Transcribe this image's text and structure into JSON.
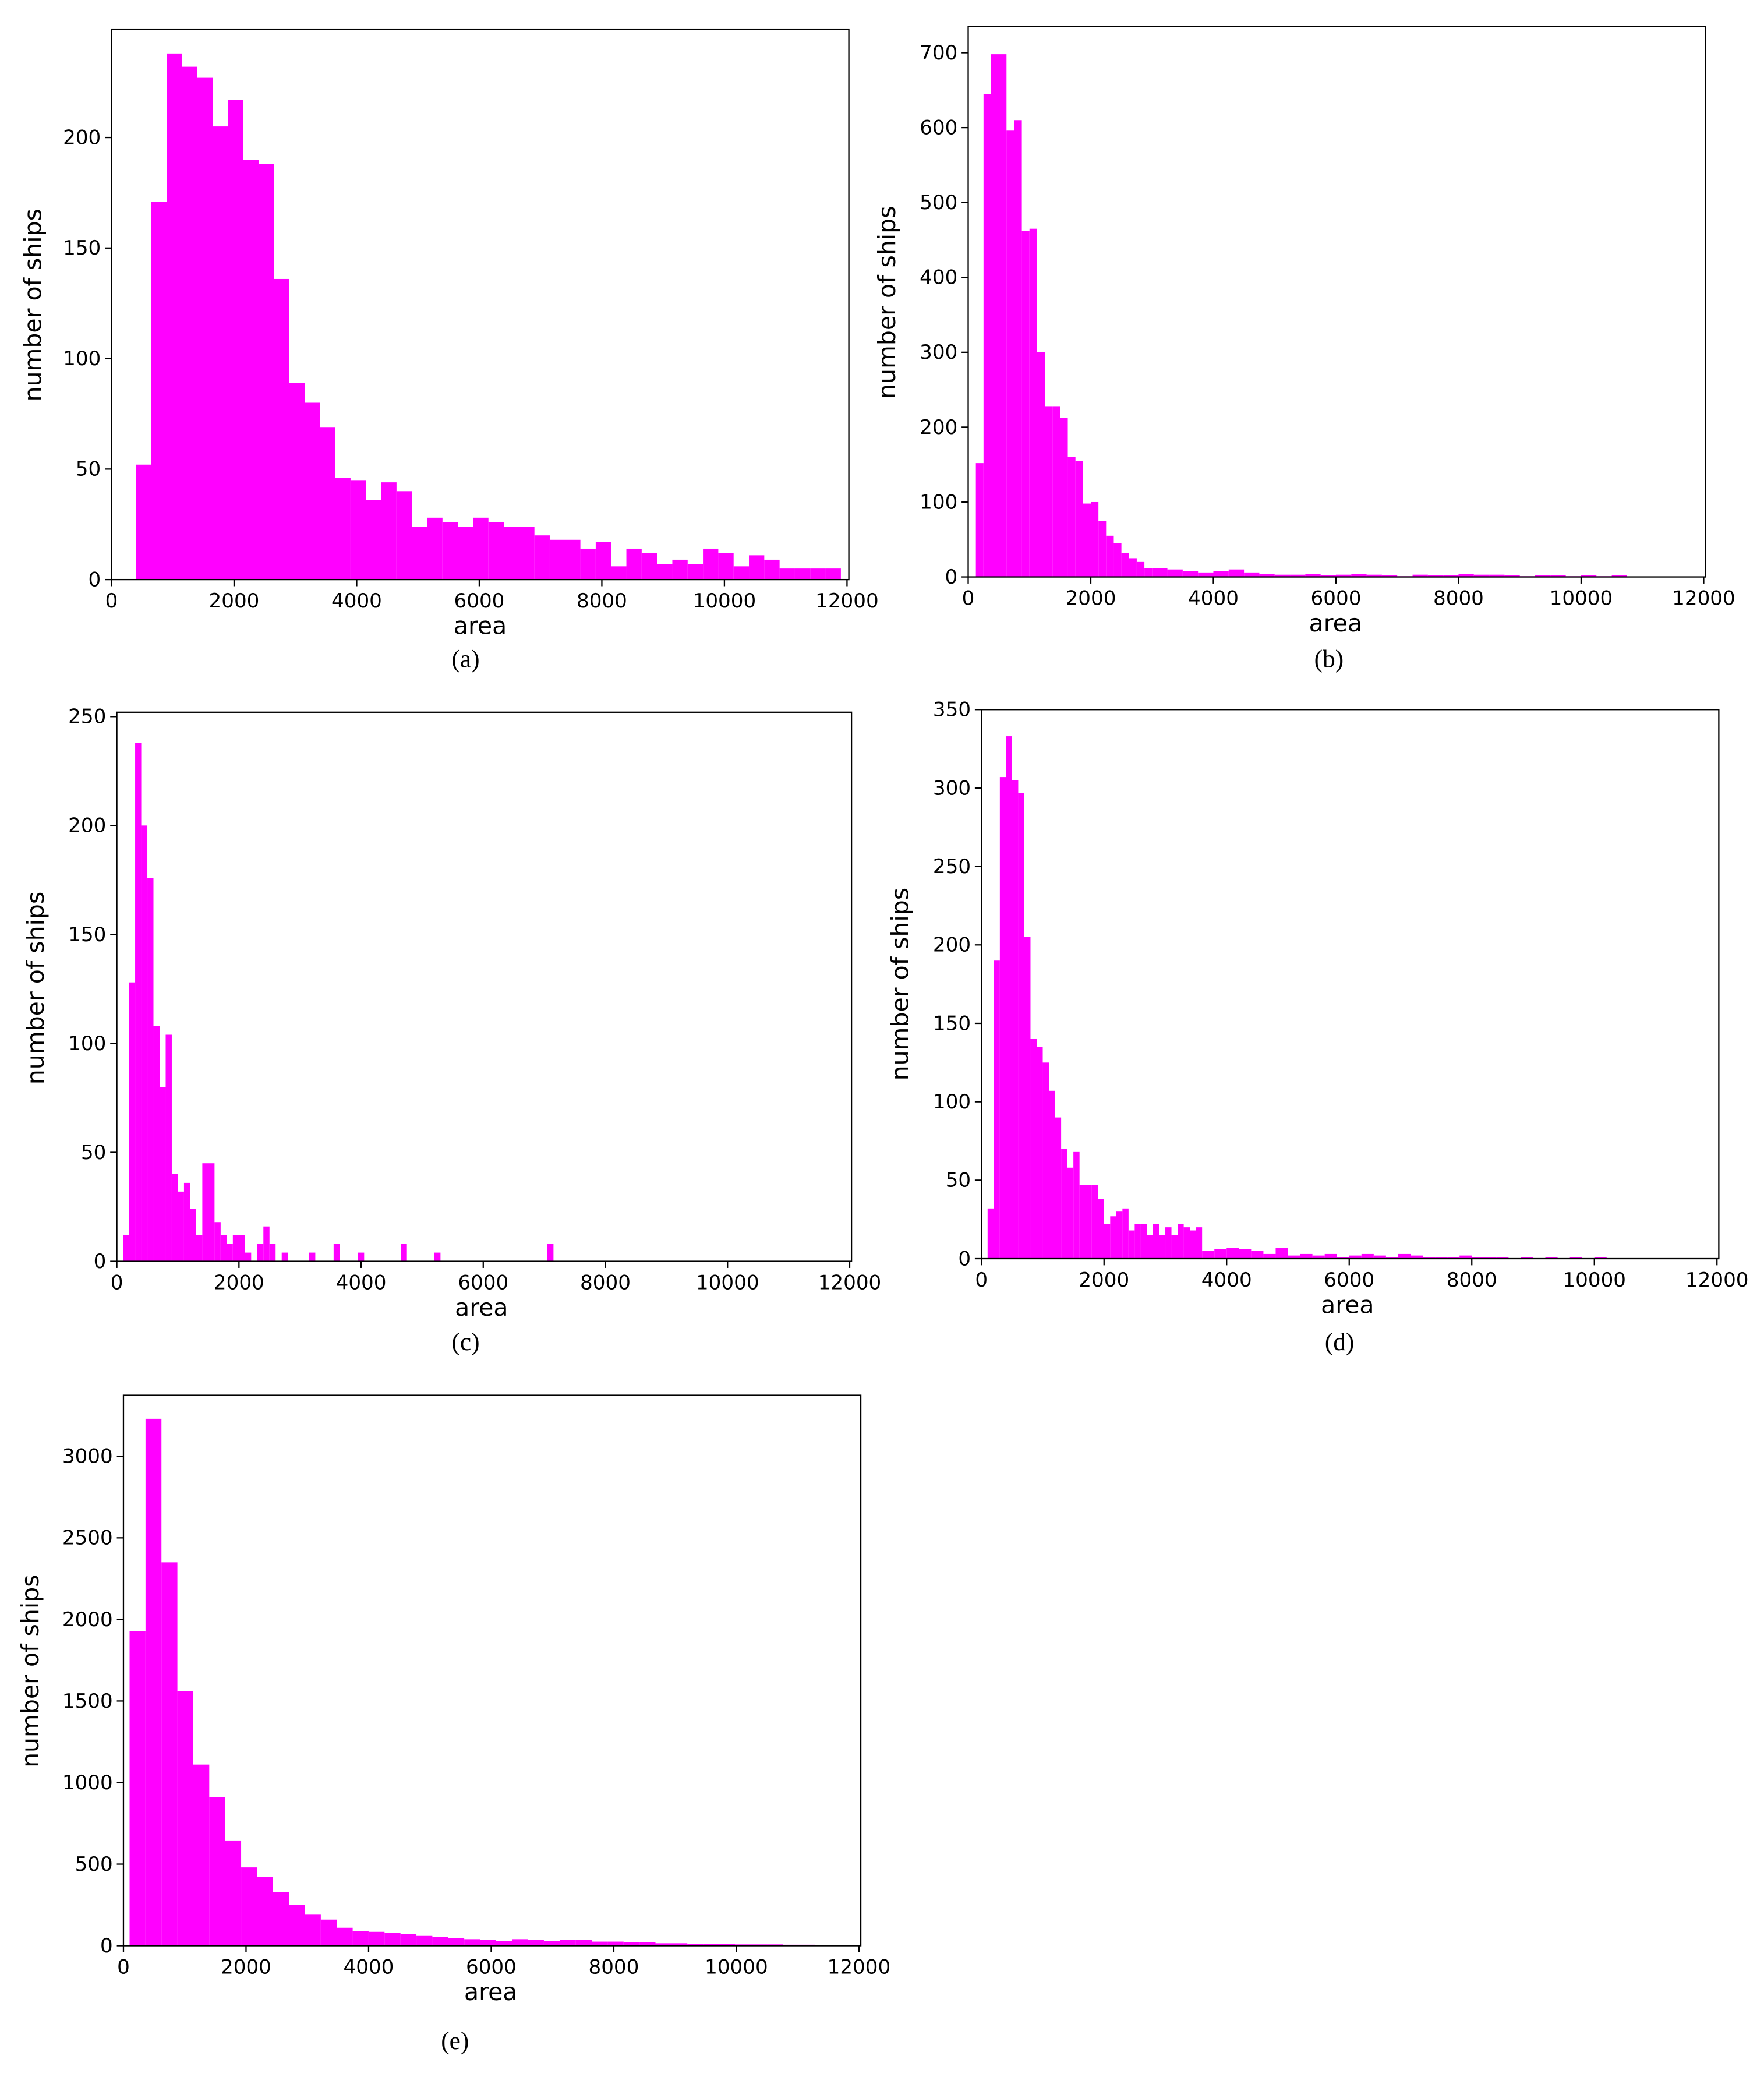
{
  "chart_data": [
    {
      "type": "histogram",
      "caption": "(a)",
      "xlabel": "area",
      "ylabel": "number of ships",
      "color": "#ff00ff",
      "bins": [
        400,
        650,
        900,
        1150,
        1400,
        1650,
        1900,
        2150,
        2400,
        2650,
        2900,
        3150,
        3400,
        3650,
        3900,
        4150,
        4400,
        4650,
        4900,
        5150,
        5400,
        5650,
        5900,
        6150,
        6400,
        6650,
        6900,
        7150,
        7400,
        7650,
        7900,
        8150,
        8400,
        8650,
        8900,
        9150,
        9400,
        9650,
        9900,
        10150,
        10400,
        10650,
        10900,
        11150,
        11400,
        11650,
        11900
      ],
      "values": [
        52,
        171,
        238,
        232,
        227,
        205,
        217,
        190,
        188,
        136,
        89,
        80,
        69,
        46,
        45,
        36,
        44,
        40,
        24,
        28,
        26,
        24,
        28,
        26,
        24,
        24,
        20,
        18,
        18,
        14,
        17,
        6,
        14,
        12,
        7,
        9,
        7,
        14,
        12,
        6,
        11,
        9,
        5,
        5,
        5,
        5
      ],
      "xlim": [
        0,
        12030
      ],
      "ylim": [
        0,
        249
      ],
      "xticks": [
        0,
        2000,
        4000,
        6000,
        8000,
        10000,
        12000
      ],
      "yticks": [
        0,
        50,
        100,
        150,
        200
      ]
    },
    {
      "type": "histogram",
      "caption": "(b)",
      "xlabel": "area",
      "ylabel": "number of ships",
      "color": "#ff00ff",
      "bins": [
        125,
        250,
        375,
        500,
        625,
        750,
        875,
        1000,
        1125,
        1250,
        1375,
        1500,
        1625,
        1750,
        1875,
        2000,
        2125,
        2250,
        2375,
        2500,
        2625,
        2750,
        2875,
        3000,
        3250,
        3500,
        3750,
        4000,
        4250,
        4500,
        4750,
        5000,
        5250,
        5500,
        5750,
        6000,
        6250,
        6500,
        6750,
        7000,
        7250,
        7500,
        7750,
        8000,
        8250,
        8500,
        8750,
        9000,
        9250,
        9500,
        9750,
        10000,
        10250,
        10500,
        10750
      ],
      "values": [
        152,
        645,
        698,
        698,
        596,
        610,
        462,
        465,
        300,
        228,
        228,
        212,
        160,
        155,
        98,
        100,
        75,
        55,
        45,
        32,
        25,
        20,
        12,
        12,
        10,
        8,
        6,
        8,
        10,
        6,
        4,
        3,
        3,
        4,
        2,
        3,
        4,
        3,
        2,
        1,
        3,
        2,
        2,
        4,
        3,
        3,
        2,
        1,
        2,
        2,
        1,
        2,
        1,
        2
      ],
      "xlim": [
        0,
        12030
      ],
      "ylim": [
        0,
        735
      ],
      "xticks": [
        0,
        2000,
        4000,
        6000,
        8000,
        10000,
        12000
      ],
      "yticks": [
        0,
        100,
        200,
        300,
        400,
        500,
        600,
        700
      ]
    },
    {
      "type": "histogram",
      "caption": "(c)",
      "xlabel": "area",
      "ylabel": "number of ships",
      "color": "#ff00ff",
      "bins": [
        100,
        200,
        300,
        400,
        500,
        600,
        700,
        800,
        900,
        1000,
        1100,
        1200,
        1300,
        1400,
        1500,
        1600,
        1700,
        1800,
        1900,
        2000,
        2100,
        2200,
        2300,
        2400,
        2500,
        2600,
        2700,
        2800,
        3150,
        3250,
        3550,
        3650,
        3950,
        4050,
        4650,
        4750,
        5200,
        5300,
        7050,
        7150
      ],
      "values": [
        12,
        128,
        238,
        200,
        176,
        108,
        80,
        104,
        40,
        32,
        36,
        24,
        12,
        45,
        45,
        18,
        12,
        8,
        12,
        12,
        4,
        0,
        8,
        16,
        8,
        0,
        4,
        0,
        4,
        0,
        8,
        0,
        4,
        0,
        8,
        0,
        4,
        0,
        8
      ],
      "xlim": [
        0,
        12030
      ],
      "ylim": [
        0,
        252
      ],
      "xticks": [
        0,
        2000,
        4000,
        6000,
        8000,
        10000,
        12000
      ],
      "yticks": [
        0,
        50,
        100,
        150,
        200,
        250
      ]
    },
    {
      "type": "histogram",
      "caption": "(d)",
      "xlabel": "area",
      "ylabel": "number of ships",
      "color": "#ff00ff",
      "bins": [
        100,
        200,
        300,
        400,
        500,
        600,
        700,
        800,
        900,
        1000,
        1100,
        1200,
        1300,
        1400,
        1500,
        1600,
        1700,
        1800,
        1900,
        2000,
        2100,
        2200,
        2300,
        2400,
        2500,
        2600,
        2700,
        2800,
        2900,
        3000,
        3100,
        3200,
        3300,
        3400,
        3500,
        3600,
        3800,
        4000,
        4200,
        4400,
        4600,
        4800,
        5000,
        5200,
        5400,
        5600,
        5800,
        6000,
        6200,
        6400,
        6600,
        6800,
        7000,
        7200,
        7400,
        7600,
        7800,
        8000,
        8200,
        8400,
        8600,
        8800,
        9000,
        9200,
        9400,
        9600,
        9800,
        10000,
        10200
      ],
      "values": [
        32,
        190,
        307,
        333,
        305,
        297,
        205,
        140,
        135,
        125,
        107,
        90,
        70,
        58,
        68,
        47,
        47,
        47,
        38,
        22,
        27,
        30,
        32,
        18,
        22,
        22,
        15,
        22,
        15,
        20,
        15,
        22,
        20,
        18,
        20,
        5,
        6,
        7,
        6,
        5,
        3,
        7,
        2,
        3,
        2,
        3,
        1,
        2,
        3,
        2,
        1,
        3,
        2,
        1,
        1,
        1,
        2,
        1,
        1,
        1,
        0,
        1,
        0,
        1,
        0,
        1,
        0,
        1
      ],
      "xlim": [
        0,
        12030
      ],
      "ylim": [
        0,
        350
      ],
      "xticks": [
        0,
        2000,
        4000,
        6000,
        8000,
        10000,
        12000
      ],
      "yticks": [
        0,
        50,
        100,
        150,
        200,
        250,
        300,
        350
      ]
    },
    {
      "type": "histogram",
      "caption": "(e)",
      "xlabel": "area",
      "ylabel": "number of ships",
      "color": "#ff00ff",
      "bins": [
        100,
        360,
        620,
        880,
        1140,
        1400,
        1660,
        1920,
        2180,
        2440,
        2700,
        2960,
        3220,
        3480,
        3740,
        4000,
        4260,
        4520,
        4780,
        5040,
        5300,
        5560,
        5820,
        6080,
        6340,
        6600,
        6860,
        7120,
        7380,
        7640,
        7900,
        8160,
        8420,
        8680,
        8940,
        9200,
        9460,
        9720,
        9980,
        10240,
        10500,
        10760,
        11020,
        11280,
        11540,
        11800
      ],
      "values": [
        1930,
        3230,
        2350,
        1560,
        1110,
        910,
        645,
        480,
        420,
        330,
        250,
        190,
        160,
        110,
        90,
        85,
        80,
        70,
        60,
        55,
        45,
        40,
        35,
        30,
        40,
        35,
        30,
        35,
        35,
        25,
        25,
        20,
        20,
        15,
        15,
        10,
        10,
        10,
        8,
        8,
        8,
        6,
        6,
        5,
        5
      ],
      "xlim": [
        0,
        12030
      ],
      "ylim": [
        0,
        3374
      ],
      "xticks": [
        0,
        2000,
        4000,
        6000,
        8000,
        10000,
        12000
      ],
      "yticks": [
        0,
        500,
        1000,
        1500,
        2000,
        2500,
        3000
      ]
    }
  ]
}
